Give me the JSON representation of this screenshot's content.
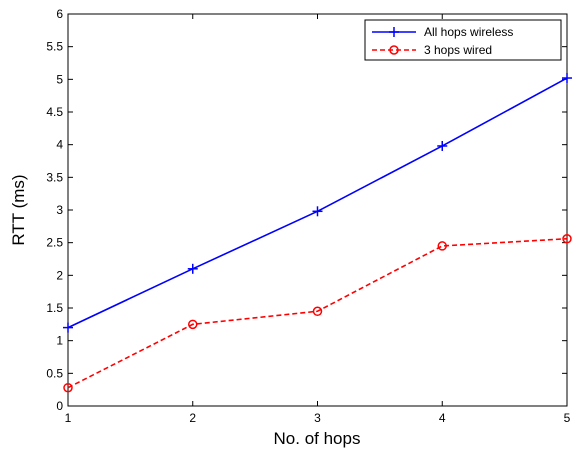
{
  "chart_data": {
    "type": "line",
    "title": "",
    "xlabel": "No. of hops",
    "ylabel": "RTT (ms)",
    "x": [
      1,
      2,
      3,
      4,
      5
    ],
    "xlim": [
      1,
      5
    ],
    "ylim": [
      0,
      6
    ],
    "xticks": [
      "1",
      "2",
      "3",
      "4",
      "5"
    ],
    "yticks": [
      "0",
      "0.5",
      "1",
      "1.5",
      "2",
      "2.5",
      "3",
      "3.5",
      "4",
      "4.5",
      "5",
      "5.5",
      "6"
    ],
    "grid": false,
    "legend_position": "top-right",
    "series": [
      {
        "name": "All hops wireless",
        "values": [
          1.2,
          2.1,
          2.98,
          3.98,
          5.02
        ],
        "color": "#0000ff",
        "line_style": "solid",
        "marker": "plus"
      },
      {
        "name": "3 hops wired",
        "values": [
          0.28,
          1.25,
          1.45,
          2.45,
          2.56
        ],
        "color": "#ff0000",
        "line_style": "dashed",
        "marker": "circle"
      }
    ]
  }
}
